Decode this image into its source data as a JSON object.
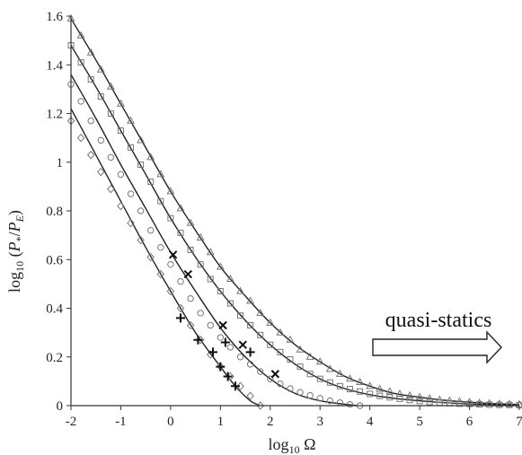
{
  "chart_data": {
    "type": "scatter",
    "xlabel": "log₁₀ Ω",
    "ylabel": "log₁₀ (P*/P_E)",
    "xlim": [
      -2,
      7
    ],
    "ylim": [
      0,
      1.6
    ],
    "xticks": [
      "-2",
      "-1",
      "0",
      "1",
      "2",
      "3",
      "4",
      "5",
      "6",
      "7"
    ],
    "yticks": [
      "0",
      "0.2",
      "0.4",
      "0.6",
      "0.8",
      "1",
      "1.2",
      "1.4",
      "1.6"
    ],
    "annotation": "quasi-statics",
    "curves": [
      {
        "type": "line",
        "points": [
          [
            -2,
            1.59
          ],
          [
            -1.5,
            1.42
          ],
          [
            -1,
            1.24
          ],
          [
            -0.5,
            1.06
          ],
          [
            0,
            0.88
          ],
          [
            0.5,
            0.72
          ],
          [
            1,
            0.57
          ],
          [
            1.5,
            0.45
          ],
          [
            2,
            0.34
          ],
          [
            2.5,
            0.25
          ],
          [
            3,
            0.18
          ],
          [
            3.5,
            0.12
          ],
          [
            4,
            0.08
          ],
          [
            4.5,
            0.05
          ],
          [
            5,
            0.035
          ],
          [
            5.5,
            0.022
          ],
          [
            6,
            0.014
          ],
          [
            6.5,
            0.008
          ],
          [
            7,
            0.005
          ]
        ]
      },
      {
        "type": "line",
        "points": [
          [
            -2,
            1.48
          ],
          [
            -1.5,
            1.31
          ],
          [
            -1,
            1.13
          ],
          [
            -0.5,
            0.95
          ],
          [
            0,
            0.77
          ],
          [
            0.5,
            0.61
          ],
          [
            1,
            0.47
          ],
          [
            1.5,
            0.35
          ],
          [
            2,
            0.25
          ],
          [
            2.5,
            0.17
          ],
          [
            3,
            0.11
          ],
          [
            3.5,
            0.07
          ],
          [
            4,
            0.045
          ],
          [
            4.5,
            0.03
          ],
          [
            5,
            0.02
          ],
          [
            5.5,
            0.012
          ],
          [
            6,
            0.007
          ],
          [
            6.5,
            0.004
          ],
          [
            7,
            0.002
          ]
        ]
      },
      {
        "type": "line",
        "points": [
          [
            -2,
            1.36
          ],
          [
            -1.5,
            1.18
          ],
          [
            -1,
            0.99
          ],
          [
            -0.5,
            0.81
          ],
          [
            0,
            0.63
          ],
          [
            0.5,
            0.47
          ],
          [
            1,
            0.32
          ],
          [
            1.5,
            0.2
          ],
          [
            2,
            0.11
          ],
          [
            2.5,
            0.05
          ],
          [
            3,
            0.02
          ],
          [
            3.5,
            0.006
          ],
          [
            3.75,
            0
          ]
        ]
      },
      {
        "type": "line",
        "points": [
          [
            -2,
            1.22
          ],
          [
            -1.5,
            1.03
          ],
          [
            -1,
            0.84
          ],
          [
            -0.5,
            0.65
          ],
          [
            0,
            0.47
          ],
          [
            0.5,
            0.3
          ],
          [
            1,
            0.16
          ],
          [
            1.3,
            0.08
          ],
          [
            1.6,
            0.02
          ],
          [
            1.8,
            0
          ]
        ]
      }
    ],
    "series": [
      {
        "marker": "triangle",
        "points": [
          [
            -2,
            1.59
          ],
          [
            -1.8,
            1.52
          ],
          [
            -1.6,
            1.45
          ],
          [
            -1.4,
            1.38
          ],
          [
            -1.2,
            1.31
          ],
          [
            -1,
            1.24
          ],
          [
            -0.8,
            1.17
          ],
          [
            -0.6,
            1.09
          ],
          [
            -0.4,
            1.02
          ],
          [
            -0.2,
            0.95
          ],
          [
            0,
            0.88
          ],
          [
            0.2,
            0.81
          ],
          [
            0.4,
            0.75
          ],
          [
            0.6,
            0.69
          ],
          [
            0.8,
            0.63
          ],
          [
            1,
            0.57
          ],
          [
            1.2,
            0.52
          ],
          [
            1.4,
            0.47
          ],
          [
            1.6,
            0.43
          ],
          [
            1.8,
            0.38
          ],
          [
            2,
            0.34
          ],
          [
            2.2,
            0.3
          ],
          [
            2.4,
            0.27
          ],
          [
            2.6,
            0.23
          ],
          [
            2.8,
            0.2
          ],
          [
            3,
            0.18
          ],
          [
            3.2,
            0.15
          ],
          [
            3.4,
            0.13
          ],
          [
            3.6,
            0.11
          ],
          [
            3.8,
            0.096
          ],
          [
            4,
            0.08
          ],
          [
            4.2,
            0.068
          ],
          [
            4.4,
            0.058
          ],
          [
            4.6,
            0.048
          ],
          [
            4.8,
            0.041
          ],
          [
            5,
            0.035
          ],
          [
            5.2,
            0.029
          ],
          [
            5.4,
            0.024
          ],
          [
            5.6,
            0.02
          ],
          [
            5.8,
            0.017
          ],
          [
            6,
            0.014
          ],
          [
            6.2,
            0.011
          ],
          [
            6.4,
            0.009
          ],
          [
            6.6,
            0.007
          ],
          [
            6.8,
            0.006
          ],
          [
            7,
            0.005
          ]
        ]
      },
      {
        "marker": "square",
        "points": [
          [
            -2,
            1.48
          ],
          [
            -1.8,
            1.41
          ],
          [
            -1.6,
            1.34
          ],
          [
            -1.4,
            1.27
          ],
          [
            -1.2,
            1.2
          ],
          [
            -1,
            1.13
          ],
          [
            -0.8,
            1.06
          ],
          [
            -0.6,
            0.99
          ],
          [
            -0.4,
            0.92
          ],
          [
            -0.2,
            0.84
          ],
          [
            0,
            0.77
          ],
          [
            0.2,
            0.71
          ],
          [
            0.4,
            0.64
          ],
          [
            0.6,
            0.58
          ],
          [
            0.8,
            0.52
          ],
          [
            1,
            0.47
          ],
          [
            1.2,
            0.42
          ],
          [
            1.4,
            0.37
          ],
          [
            1.6,
            0.33
          ],
          [
            1.8,
            0.29
          ],
          [
            2,
            0.25
          ],
          [
            2.2,
            0.22
          ],
          [
            2.4,
            0.19
          ],
          [
            2.6,
            0.16
          ],
          [
            2.8,
            0.13
          ],
          [
            3,
            0.11
          ],
          [
            3.2,
            0.095
          ],
          [
            3.4,
            0.08
          ],
          [
            3.6,
            0.068
          ],
          [
            3.8,
            0.058
          ],
          [
            4,
            0.048
          ],
          [
            4.2,
            0.04
          ],
          [
            4.4,
            0.034
          ],
          [
            4.6,
            0.028
          ],
          [
            4.8,
            0.023
          ],
          [
            5,
            0.019
          ],
          [
            5.2,
            0.015
          ],
          [
            5.4,
            0.012
          ],
          [
            5.6,
            0.01
          ],
          [
            5.8,
            0.008
          ],
          [
            6,
            0.007
          ],
          [
            6.2,
            0.005
          ],
          [
            6.4,
            0.004
          ],
          [
            6.6,
            0.003
          ],
          [
            6.8,
            0.003
          ],
          [
            7,
            0.002
          ]
        ]
      },
      {
        "marker": "circle",
        "points": [
          [
            -2,
            1.32
          ],
          [
            -1.8,
            1.25
          ],
          [
            -1.6,
            1.17
          ],
          [
            -1.4,
            1.09
          ],
          [
            -1.2,
            1.02
          ],
          [
            -1,
            0.95
          ],
          [
            -0.8,
            0.87
          ],
          [
            -0.6,
            0.8
          ],
          [
            -0.4,
            0.72
          ],
          [
            -0.2,
            0.65
          ],
          [
            0,
            0.58
          ],
          [
            0.2,
            0.51
          ],
          [
            0.4,
            0.44
          ],
          [
            0.6,
            0.38
          ],
          [
            0.8,
            0.33
          ],
          [
            1,
            0.28
          ],
          [
            1.2,
            0.24
          ],
          [
            1.4,
            0.2
          ],
          [
            1.6,
            0.17
          ],
          [
            1.8,
            0.14
          ],
          [
            2,
            0.11
          ],
          [
            2.2,
            0.09
          ],
          [
            2.4,
            0.07
          ],
          [
            2.6,
            0.055
          ],
          [
            2.8,
            0.042
          ],
          [
            3,
            0.03
          ],
          [
            3.2,
            0.02
          ],
          [
            3.4,
            0.012
          ],
          [
            3.6,
            0.005
          ],
          [
            3.8,
            0
          ]
        ]
      },
      {
        "marker": "diamond",
        "points": [
          [
            -2,
            1.17
          ],
          [
            -1.8,
            1.1
          ],
          [
            -1.6,
            1.03
          ],
          [
            -1.4,
            0.96
          ],
          [
            -1.2,
            0.89
          ],
          [
            -1,
            0.82
          ],
          [
            -0.8,
            0.75
          ],
          [
            -0.6,
            0.68
          ],
          [
            -0.4,
            0.61
          ],
          [
            -0.2,
            0.54
          ],
          [
            0,
            0.47
          ],
          [
            0.2,
            0.4
          ],
          [
            0.4,
            0.33
          ],
          [
            0.6,
            0.27
          ],
          [
            0.8,
            0.21
          ],
          [
            1,
            0.16
          ],
          [
            1.2,
            0.12
          ],
          [
            1.4,
            0.08
          ],
          [
            1.6,
            0.04
          ],
          [
            1.8,
            0
          ]
        ]
      },
      {
        "marker": "x",
        "points": [
          [
            0.05,
            0.62
          ],
          [
            0.35,
            0.54
          ],
          [
            1.05,
            0.33
          ],
          [
            1.45,
            0.25
          ],
          [
            2.1,
            0.13
          ]
        ]
      },
      {
        "marker": "plus",
        "points": [
          [
            0.2,
            0.36
          ],
          [
            0.55,
            0.27
          ],
          [
            0.85,
            0.22
          ],
          [
            1,
            0.16
          ],
          [
            1.1,
            0.26
          ],
          [
            1.15,
            0.12
          ],
          [
            1.6,
            0.22
          ],
          [
            1.3,
            0.08
          ]
        ]
      }
    ]
  }
}
